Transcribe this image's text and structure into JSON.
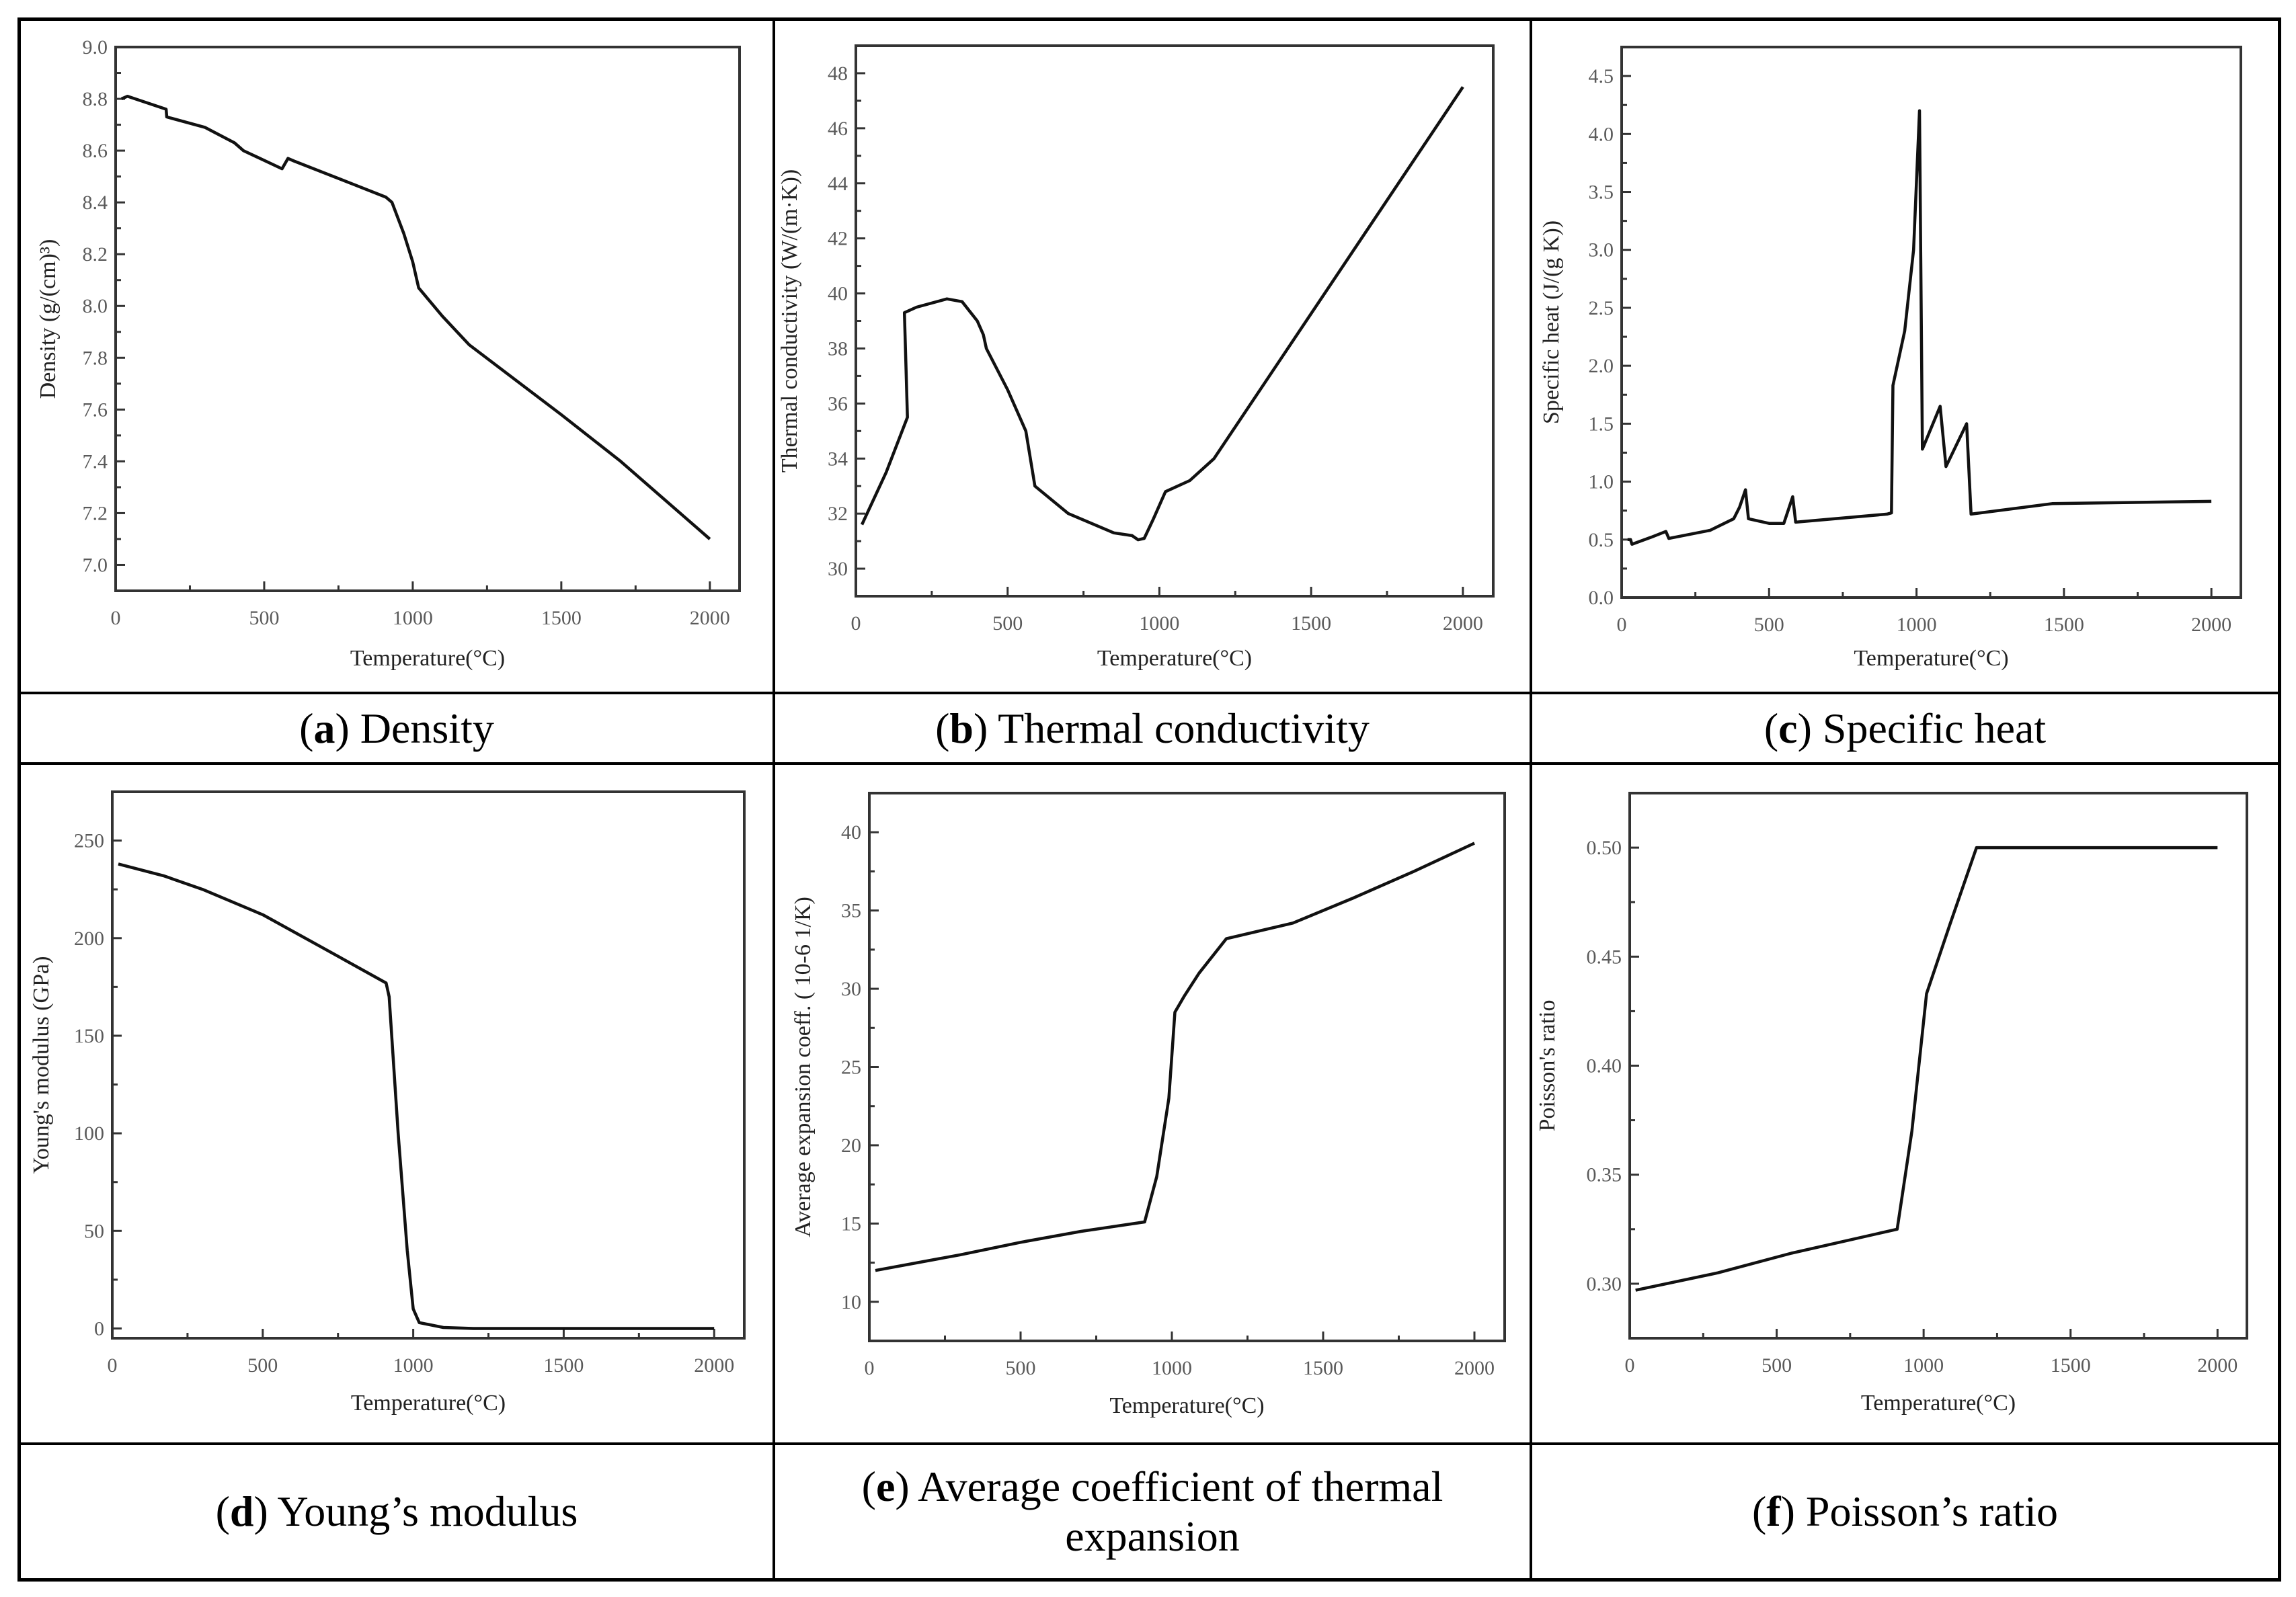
{
  "chart_data": [
    {
      "type": "line",
      "caption_letter": "a",
      "caption_text": "Density",
      "xlabel": "Temperature(°C)",
      "ylabel": "Density (g/(cm)³)",
      "xlim": [
        0,
        2100
      ],
      "ylim": [
        6.9,
        9.0
      ],
      "xticks": [
        0,
        500,
        1000,
        1500,
        2000
      ],
      "xtick_labels": [
        "0",
        "500",
        "1000",
        "1500",
        "2000"
      ],
      "yticks": [
        7.0,
        7.2,
        7.4,
        7.6,
        7.8,
        8.0,
        8.2,
        8.4,
        8.6,
        8.8,
        9.0
      ],
      "ytick_labels": [
        "7.0",
        "7.2",
        "7.4",
        "7.6",
        "7.8",
        "8.0",
        "8.2",
        "8.4",
        "8.6",
        "8.8",
        "9.0"
      ],
      "x": [
        20,
        40,
        170,
        172,
        300,
        400,
        430,
        560,
        580,
        600,
        800,
        910,
        930,
        970,
        1000,
        1020,
        1100,
        1190,
        1500,
        1700,
        2000
      ],
      "y": [
        8.8,
        8.81,
        8.76,
        8.73,
        8.69,
        8.63,
        8.6,
        8.53,
        8.57,
        8.56,
        8.47,
        8.42,
        8.4,
        8.28,
        8.17,
        8.07,
        7.96,
        7.85,
        7.58,
        7.4,
        7.1
      ]
    },
    {
      "type": "line",
      "caption_letter": "b",
      "caption_text": "Thermal conductivity",
      "xlabel": "Temperature(°C)",
      "ylabel": "Thermal conductivity (W/(m·K))",
      "xlim": [
        0,
        2100
      ],
      "ylim": [
        29,
        49
      ],
      "xticks": [
        0,
        500,
        1000,
        1500,
        2000
      ],
      "xtick_labels": [
        "0",
        "500",
        "1000",
        "1500",
        "2000"
      ],
      "yticks": [
        30,
        32,
        34,
        36,
        38,
        40,
        42,
        44,
        46,
        48
      ],
      "ytick_labels": [
        "30",
        "32",
        "34",
        "36",
        "38",
        "40",
        "42",
        "44",
        "46",
        "48"
      ],
      "x": [
        20,
        100,
        170,
        160,
        200,
        300,
        350,
        400,
        420,
        430,
        500,
        560,
        590,
        700,
        850,
        910,
        930,
        950,
        980,
        1020,
        1100,
        1180,
        2000
      ],
      "y": [
        31.6,
        33.5,
        35.5,
        39.3,
        39.5,
        39.8,
        39.7,
        39.0,
        38.5,
        38.0,
        36.5,
        35.0,
        33.0,
        32.0,
        31.3,
        31.2,
        31.05,
        31.1,
        31.8,
        32.8,
        33.2,
        34.0,
        47.5
      ]
    },
    {
      "type": "line",
      "caption_letter": "c",
      "caption_text": "Specific heat",
      "xlabel": "Temperature(°C)",
      "ylabel": "Specific heat (J/(g K))",
      "xlim": [
        0,
        2100
      ],
      "ylim": [
        0,
        4.75
      ],
      "xticks": [
        0,
        500,
        1000,
        1500,
        2000
      ],
      "xtick_labels": [
        "0",
        "500",
        "1000",
        "1500",
        "2000"
      ],
      "yticks": [
        0,
        0.5,
        1.0,
        1.5,
        2.0,
        2.5,
        3.0,
        3.5,
        4.0,
        4.5
      ],
      "ytick_labels": [
        "0.0",
        "0.5",
        "1.0",
        "1.5",
        "2.0",
        "2.5",
        "3.0",
        "3.5",
        "4.0",
        "4.5"
      ],
      "x": [
        20,
        30,
        35,
        100,
        150,
        160,
        300,
        380,
        400,
        420,
        430,
        500,
        550,
        580,
        590,
        900,
        915,
        920,
        960,
        990,
        1010,
        1020,
        1080,
        1100,
        1170,
        1185,
        1460,
        2000
      ],
      "y": [
        0.5,
        0.5,
        0.46,
        0.52,
        0.57,
        0.51,
        0.58,
        0.68,
        0.78,
        0.93,
        0.68,
        0.64,
        0.64,
        0.87,
        0.65,
        0.72,
        0.73,
        1.83,
        2.3,
        3.0,
        4.2,
        1.28,
        1.65,
        1.13,
        1.5,
        0.72,
        0.81,
        0.83
      ]
    },
    {
      "type": "line",
      "caption_letter": "d",
      "caption_text": "Young’s modulus",
      "xlabel": "Temperature(°C)",
      "ylabel": "Young's modulus (GPa)",
      "xlim": [
        0,
        2100
      ],
      "ylim": [
        -5,
        275
      ],
      "xticks": [
        0,
        500,
        1000,
        1500,
        2000
      ],
      "xtick_labels": [
        "0",
        "500",
        "1000",
        "1500",
        "2000"
      ],
      "yticks": [
        0,
        50,
        100,
        150,
        200,
        250
      ],
      "ytick_labels": [
        "0",
        "50",
        "100",
        "150",
        "200",
        "250"
      ],
      "x": [
        20,
        170,
        300,
        500,
        700,
        910,
        920,
        950,
        980,
        1000,
        1020,
        1100,
        1200,
        2000
      ],
      "y": [
        238,
        232,
        225,
        212,
        195,
        177,
        170,
        100,
        40,
        10,
        3,
        0.5,
        0,
        0
      ]
    },
    {
      "type": "line",
      "caption_letter": "e",
      "caption_text": "Average coefficient of thermal expansion",
      "xlabel": "Temperature(°C)",
      "ylabel": "Average expansion coeff. ( 10-6  1/K)",
      "xlim": [
        0,
        2100
      ],
      "ylim": [
        7.5,
        42.5
      ],
      "xticks": [
        0,
        500,
        1000,
        1500,
        2000
      ],
      "xtick_labels": [
        "0",
        "500",
        "1000",
        "1500",
        "2000"
      ],
      "yticks": [
        10,
        15,
        20,
        25,
        30,
        35,
        40
      ],
      "ytick_labels": [
        "10",
        "15",
        "20",
        "25",
        "30",
        "35",
        "40"
      ],
      "x": [
        20,
        300,
        500,
        700,
        910,
        950,
        990,
        1010,
        1040,
        1090,
        1180,
        1400,
        1600,
        1800,
        2000
      ],
      "y": [
        12.0,
        13.0,
        13.8,
        14.5,
        15.1,
        18.0,
        23.0,
        28.5,
        29.5,
        31.0,
        33.2,
        34.2,
        35.8,
        37.5,
        39.3
      ]
    },
    {
      "type": "line",
      "caption_letter": "f",
      "caption_text": "Poisson’s ratio",
      "xlabel": "Temperature(°C)",
      "ylabel": "Poisson's ratio",
      "xlim": [
        0,
        2100
      ],
      "ylim": [
        0.275,
        0.525
      ],
      "xticks": [
        0,
        500,
        1000,
        1500,
        2000
      ],
      "xtick_labels": [
        "0",
        "500",
        "1000",
        "1500",
        "2000"
      ],
      "yticks": [
        0.3,
        0.35,
        0.4,
        0.45,
        0.5
      ],
      "ytick_labels": [
        "0.30",
        "0.35",
        "0.40",
        "0.45",
        "0.50"
      ],
      "x": [
        20,
        300,
        550,
        910,
        960,
        1010,
        1090,
        1180,
        2000
      ],
      "y": [
        0.297,
        0.305,
        0.314,
        0.325,
        0.37,
        0.433,
        0.465,
        0.5,
        0.5
      ]
    }
  ]
}
